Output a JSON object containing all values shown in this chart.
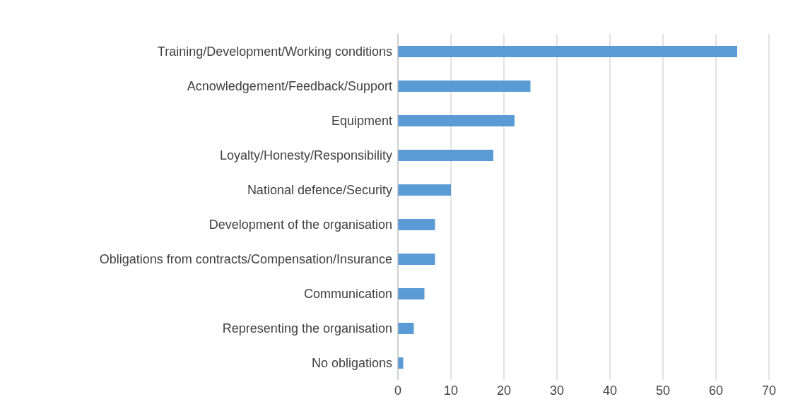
{
  "chart_data": {
    "type": "bar",
    "orientation": "horizontal",
    "categories": [
      "Training/Development/Working conditions",
      "Acnowledgement/Feedback/Support",
      "Equipment",
      "Loyalty/Honesty/Responsibility",
      "National defence/Security",
      "Development of the organisation",
      "Obligations from contracts/Compensation/Insurance",
      "Communication",
      "Representing the organisation",
      "No obligations"
    ],
    "values": [
      64,
      25,
      22,
      18,
      10,
      7,
      7,
      5,
      3,
      1
    ],
    "color": "#5b9bd5",
    "xlim": [
      0,
      70
    ],
    "xticks": [
      0,
      10,
      20,
      30,
      40,
      50,
      60,
      70
    ],
    "grid": "x",
    "legend": false
  }
}
